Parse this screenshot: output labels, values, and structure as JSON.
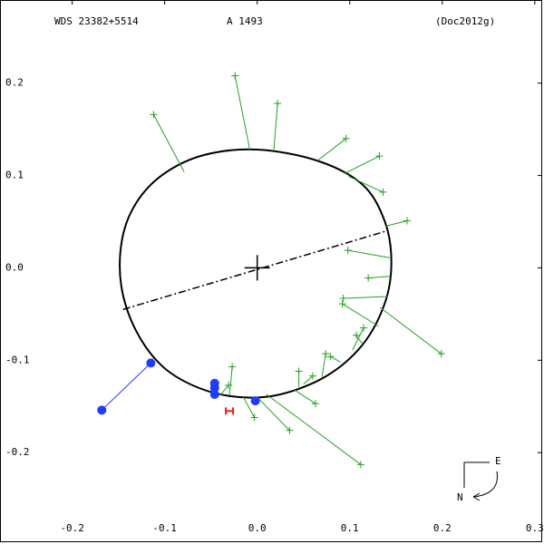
{
  "chart_data": {
    "type": "orbit",
    "title": "WDS 23382+5514",
    "subtitle": "A  1493",
    "reference": "(Doc2012g)",
    "xlim": [
      -0.278,
      0.308
    ],
    "ylim": [
      -0.297,
      0.29
    ],
    "xticks": [
      -0.2,
      -0.1,
      {
        "value": 0,
        "label": "0.0"
      },
      0.1,
      0.2,
      0.3
    ],
    "yticks": [
      0.2,
      0.1,
      {
        "value": 0,
        "label": "0.0"
      },
      -0.1,
      -0.2
    ],
    "orbit": {
      "color": "#000000",
      "x": [
        0,
        0.065,
        0.114,
        0.138,
        0.145,
        0.138,
        0.114,
        0.075,
        0.025,
        -0.019,
        -0.063,
        -0.102,
        -0.131,
        -0.147,
        -0.146,
        -0.131,
        -0.102,
        -0.058
      ],
      "y": [
        0.128,
        0.116,
        0.09,
        0.05,
        0.006,
        -0.038,
        -0.083,
        -0.117,
        -0.137,
        -0.14,
        -0.13,
        -0.107,
        -0.068,
        -0.019,
        0.031,
        0.07,
        0.101,
        0.122
      ]
    },
    "node_line": {
      "x": [
        -0.145,
        0.14
      ],
      "y": [
        -0.045,
        0.04
      ]
    },
    "origin": {
      "x": 0,
      "y": 0
    },
    "series": [
      {
        "marker": "plus",
        "color": "#22a022",
        "x": [
          -0.112,
          -0.024,
          0.022,
          0.096,
          0.132,
          0.136,
          0.162,
          0.098,
          0.12,
          0.093,
          0.092,
          0.199,
          0.107,
          0.115,
          0.079,
          0.074,
          0.045,
          0.06,
          0.063,
          0.112,
          0.035,
          -0.003,
          -0.027,
          -0.031
        ],
        "y": [
          0.166,
          0.208,
          0.178,
          0.14,
          0.121,
          0.082,
          0.051,
          0.019,
          -0.011,
          -0.033,
          -0.039,
          -0.093,
          -0.073,
          -0.065,
          -0.096,
          -0.093,
          -0.112,
          -0.117,
          -0.147,
          -0.213,
          -0.176,
          -0.162,
          -0.107,
          -0.127
        ],
        "orbit_x": [
          -0.079,
          -0.008,
          0.018,
          0.065,
          0.094,
          0.099,
          0.138,
          0.143,
          0.144,
          0.141,
          0.131,
          0.133,
          0.114,
          0.103,
          0.09,
          0.07,
          0.045,
          0.05,
          0.04,
          0.01,
          0,
          -0.015,
          -0.03,
          -0.04
        ],
        "orbit_y": [
          0.104,
          0.128,
          0.128,
          0.116,
          0.102,
          0.099,
          0.045,
          0.011,
          -0.009,
          -0.031,
          -0.063,
          -0.043,
          -0.083,
          -0.089,
          -0.102,
          -0.118,
          -0.129,
          -0.126,
          -0.132,
          -0.137,
          -0.14,
          -0.14,
          -0.138,
          -0.138
        ]
      },
      {
        "marker": "dot",
        "color": "#1e3cff",
        "x": [
          -0.168,
          -0.115,
          -0.046,
          -0.046,
          -0.046,
          -0.002
        ],
        "y": [
          -0.154,
          -0.103,
          -0.125,
          -0.13,
          -0.137,
          -0.144
        ],
        "orbit_x": [
          -0.115,
          null,
          null,
          null,
          null,
          null
        ],
        "orbit_y": [
          -0.103,
          null,
          null,
          null,
          null,
          null
        ]
      },
      {
        "marker": "H",
        "color": "#e02020",
        "x": [
          -0.03
        ],
        "y": [
          -0.155
        ]
      }
    ],
    "compass": {
      "east": "E",
      "north": "N"
    }
  }
}
